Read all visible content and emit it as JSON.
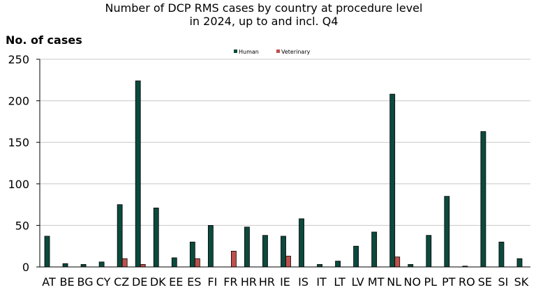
{
  "chart_data": {
    "type": "bar",
    "title_lines": [
      "Number of DCP RMS cases by country at procedure level",
      "in 2024, up to and incl. Q4"
    ],
    "xlabel": "",
    "ylabel": "No. of cases",
    "ylim": [
      0,
      250
    ],
    "yticks": [
      0,
      50,
      100,
      150,
      200,
      250
    ],
    "grid": true,
    "legend_position": "top-center",
    "categories": [
      "AT",
      "BE",
      "BG",
      "CY",
      "CZ",
      "DE",
      "DK",
      "EE",
      "ES",
      "FI",
      "FR",
      "HR",
      "HR",
      "IE",
      "IS",
      "IT",
      "LT",
      "LV",
      "MT",
      "NL",
      "NO",
      "PL",
      "PT",
      "RO",
      "SE",
      "SI",
      "SK"
    ],
    "series": [
      {
        "name": "Human",
        "color": "#0b4a3c",
        "values": [
          37,
          4,
          3,
          6,
          75,
          224,
          71,
          11,
          30,
          50,
          0,
          48,
          38,
          37,
          58,
          3,
          7,
          25,
          42,
          208,
          3,
          38,
          85,
          1,
          163,
          30,
          10
        ]
      },
      {
        "name": "Veterinary",
        "color": "#c0504d",
        "values": [
          0,
          0,
          0,
          0,
          10,
          3,
          0,
          0,
          10,
          0,
          19,
          0,
          0,
          13,
          0,
          0,
          0,
          0,
          0,
          12,
          0,
          0,
          0,
          0,
          0,
          0,
          0
        ]
      }
    ]
  }
}
